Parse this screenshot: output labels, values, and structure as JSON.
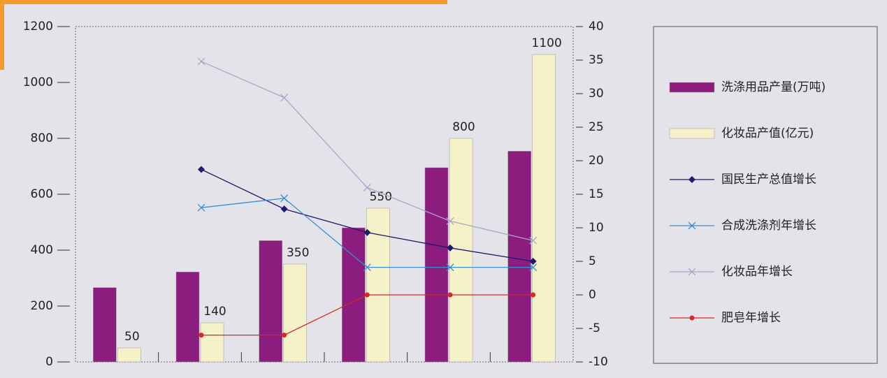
{
  "chart_data": {
    "type": "bar",
    "categories": [
      null,
      null,
      null,
      null,
      null,
      null
    ],
    "ylim": [
      0,
      1200
    ],
    "yticks": [
      0,
      200,
      400,
      600,
      800,
      1000,
      1200
    ],
    "y2lim": [
      -10,
      40
    ],
    "y2ticks": [
      -10,
      -5,
      0,
      5,
      10,
      15,
      20,
      25,
      30,
      35,
      40
    ],
    "series": [
      {
        "name": "洗涤用品产量(万吨)",
        "type": "bar",
        "color": "#8c1c7e",
        "values": [
          266,
          322,
          434,
          480,
          695,
          754
        ]
      },
      {
        "name": "化妆品产值(亿元)",
        "type": "bar",
        "color": "#f5f1c8",
        "values": [
          50,
          140,
          350,
          550,
          800,
          1100
        ]
      },
      {
        "name": "国民生产总值增长",
        "type": "line",
        "axis": "y2",
        "marker": "diamond",
        "color": "#1e1a6e",
        "values": [
          null,
          18.7,
          12.8,
          9.3,
          7.0,
          5.0
        ]
      },
      {
        "name": "合成洗涤剂年增长",
        "type": "line",
        "axis": "y2",
        "marker": "x",
        "color": "#3a8fd2",
        "values": [
          null,
          13.0,
          14.4,
          4.1,
          4.1,
          4.1
        ]
      },
      {
        "name": "化妆品年增长",
        "type": "line",
        "axis": "y2",
        "marker": "x",
        "color": "#a9a6c9",
        "values": [
          null,
          34.8,
          29.4,
          16.0,
          11.0,
          8.1
        ]
      },
      {
        "name": "肥皂年增长",
        "type": "line",
        "axis": "y2",
        "marker": "circle",
        "color": "#d62a20",
        "values": [
          null,
          -6,
          -6,
          0,
          0,
          0
        ]
      }
    ]
  }
}
